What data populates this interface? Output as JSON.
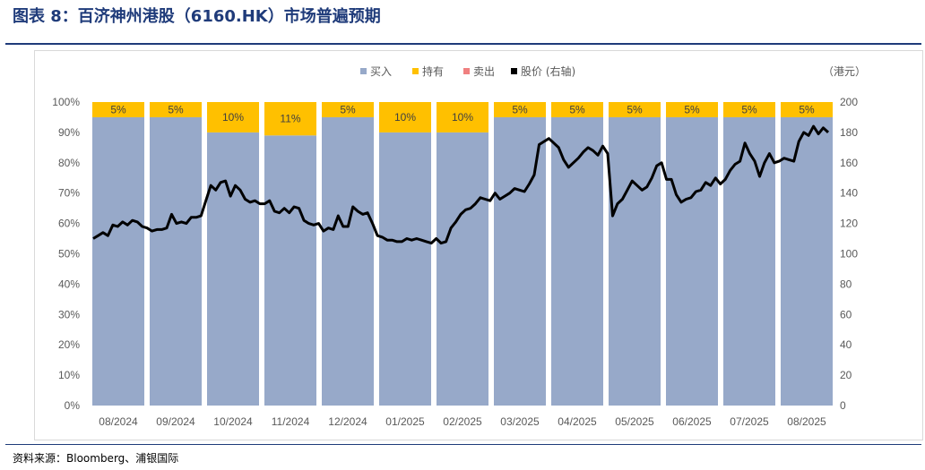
{
  "header": {
    "title": "图表 8：百济神州港股（6160.HK）市场普遍预期"
  },
  "footer": {
    "source": "资料来源：Bloomberg、浦银国际"
  },
  "colors": {
    "buy": "#97a9c9",
    "hold": "#ffc000",
    "sell": "#f08080",
    "price": "#000000",
    "title": "#1f3b7a"
  },
  "chart_data": {
    "type": "bar",
    "stacked": true,
    "title": "",
    "categories": [
      "08/2024",
      "09/2024",
      "10/2024",
      "11/2024",
      "12/2024",
      "01/2025",
      "02/2025",
      "03/2025",
      "04/2025",
      "05/2025",
      "06/2025",
      "07/2025",
      "08/2025"
    ],
    "series": [
      {
        "name": "买入",
        "type": "bar",
        "axis": "left",
        "values": [
          95,
          95,
          90,
          89,
          95,
          90,
          90,
          95,
          95,
          95,
          95,
          95,
          95
        ]
      },
      {
        "name": "持有",
        "type": "bar",
        "axis": "left",
        "values": [
          5,
          5,
          10,
          11,
          5,
          10,
          10,
          5,
          5,
          5,
          5,
          5,
          5
        ]
      },
      {
        "name": "卖出",
        "type": "bar",
        "axis": "left",
        "values": [
          0,
          0,
          0,
          0,
          0,
          0,
          0,
          0,
          0,
          0,
          0,
          0,
          0
        ]
      }
    ],
    "segment_labels": [
      "5%",
      "5%",
      "10%",
      "11%",
      "5%",
      "10%",
      "10%",
      "5%",
      "5%",
      "5%",
      "5%",
      "5%",
      "5%"
    ],
    "price_series": {
      "name": "股价 (右轴)",
      "axis": "right",
      "values": [
        110,
        112,
        114,
        112,
        119,
        118,
        121,
        119,
        122,
        121,
        118,
        117,
        115,
        116,
        116,
        117,
        126,
        120,
        121,
        120,
        124,
        124,
        125,
        135,
        145,
        142,
        147,
        148,
        138,
        145,
        142,
        136,
        134,
        135,
        133,
        133,
        135,
        128,
        127,
        130,
        127,
        131,
        130,
        122,
        120,
        119,
        120,
        115,
        117,
        116,
        125,
        118,
        118,
        131,
        128,
        126,
        127,
        120,
        112,
        111,
        109,
        109,
        108,
        108,
        110,
        109,
        110,
        109,
        108,
        107,
        110,
        107,
        108,
        117,
        121,
        126,
        129,
        130,
        133,
        137,
        136,
        135,
        140,
        136,
        138,
        140,
        143,
        142,
        141,
        146,
        152,
        172,
        174,
        176,
        173,
        170,
        162,
        157,
        160,
        163,
        167,
        170,
        168,
        165,
        171,
        166,
        125,
        133,
        136,
        142,
        148,
        145,
        142,
        144,
        150,
        158,
        160,
        149,
        149,
        139,
        134,
        136,
        137,
        141,
        142,
        147,
        145,
        150,
        146,
        149,
        155,
        159,
        161,
        173,
        166,
        161,
        151,
        160,
        166,
        160,
        161,
        163,
        162,
        161,
        174,
        180,
        178,
        184,
        179,
        183,
        180
      ]
    },
    "y_left": {
      "label": "",
      "ticks": [
        "0%",
        "10%",
        "20%",
        "30%",
        "40%",
        "50%",
        "60%",
        "70%",
        "80%",
        "90%",
        "100%"
      ],
      "ylim": [
        0,
        100
      ]
    },
    "y_right": {
      "label": "（港元）",
      "ticks": [
        "0",
        "20",
        "40",
        "60",
        "80",
        "100",
        "120",
        "140",
        "160",
        "180",
        "200"
      ],
      "ylim": [
        0,
        200
      ]
    },
    "legend": {
      "position": "top-center",
      "entries": [
        "买入",
        "持有",
        "卖出",
        "股价 (右轴)"
      ]
    }
  }
}
